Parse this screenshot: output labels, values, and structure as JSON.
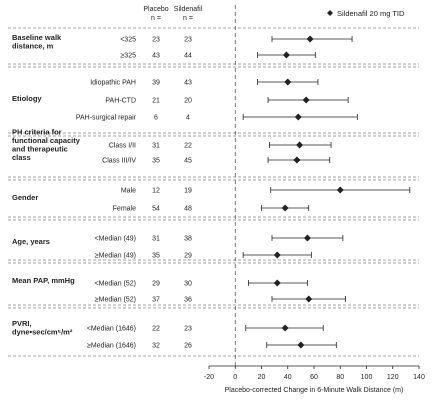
{
  "chart_data": {
    "type": "forest",
    "xlabel": "Placebo-corrected Change in 6-Minute Walk Distance (m)",
    "xticks": [
      -20,
      0,
      20,
      40,
      60,
      80,
      100,
      120,
      140
    ],
    "xlim": [
      -20,
      140
    ],
    "reference_line": 0,
    "grid": false,
    "legend": {
      "label": "Sildenafil 20 mg TID",
      "marker": "diamond",
      "placement": "top-right"
    },
    "column_headers": {
      "placebo": "Placebo",
      "placebo_n": "n =",
      "sildenafil": "Sildenafil",
      "sildenafil_n": "n ="
    },
    "groups": [
      {
        "title": "Baseline walk\ndistance, m",
        "rows": [
          {
            "label": "<325",
            "placebo_n": "23",
            "sildenafil_n": "23",
            "estimate": 57,
            "ci": [
              28,
              89
            ]
          },
          {
            "label": "≥325",
            "placebo_n": "43",
            "sildenafil_n": "44",
            "estimate": 39,
            "ci": [
              17,
              61
            ]
          }
        ]
      },
      {
        "title": "Etiology",
        "rows": [
          {
            "label": "Idiopathic PAH",
            "placebo_n": "39",
            "sildenafil_n": "43",
            "estimate": 40,
            "ci": [
              17,
              63
            ]
          },
          {
            "label": "PAH-CTD",
            "placebo_n": "21",
            "sildenafil_n": "20",
            "estimate": 54,
            "ci": [
              25,
              86
            ]
          },
          {
            "label": "PAH-surgical repair",
            "placebo_n": "6",
            "sildenafil_n": "4",
            "estimate": 48,
            "ci": [
              6,
              93
            ]
          }
        ]
      },
      {
        "title": "PH criteria for\nfunctional capacity\nand therapeutic\nclass",
        "rows": [
          {
            "label": "Class I/II",
            "placebo_n": "31",
            "sildenafil_n": "22",
            "estimate": 49,
            "ci": [
              26,
              73
            ]
          },
          {
            "label": "Class III/IV",
            "placebo_n": "35",
            "sildenafil_n": "45",
            "estimate": 47,
            "ci": [
              25,
              72
            ]
          }
        ]
      },
      {
        "title": "Gender",
        "rows": [
          {
            "label": "Male",
            "placebo_n": "12",
            "sildenafil_n": "19",
            "estimate": 80,
            "ci": [
              27,
              133
            ]
          },
          {
            "label": "Female",
            "placebo_n": "54",
            "sildenafil_n": "48",
            "estimate": 38,
            "ci": [
              20,
              56
            ]
          }
        ]
      },
      {
        "title": "Age, years",
        "rows": [
          {
            "label": "<Median (49)",
            "placebo_n": "31",
            "sildenafil_n": "38",
            "estimate": 55,
            "ci": [
              28,
              82
            ]
          },
          {
            "label": "≥Median (49)",
            "placebo_n": "35",
            "sildenafil_n": "29",
            "estimate": 32,
            "ci": [
              6,
              58
            ]
          }
        ]
      },
      {
        "title": "Mean PAP, mmHg",
        "rows": [
          {
            "label": "<Median (52)",
            "placebo_n": "29",
            "sildenafil_n": "30",
            "estimate": 32,
            "ci": [
              10,
              55
            ]
          },
          {
            "label": "≥Median (52)",
            "placebo_n": "37",
            "sildenafil_n": "36",
            "estimate": 56,
            "ci": [
              28,
              84
            ]
          }
        ]
      },
      {
        "title": "PVRI,\ndyne•sec/cm⁵/m²",
        "rows": [
          {
            "label": "<Median (1646)",
            "placebo_n": "22",
            "sildenafil_n": "23",
            "estimate": 38,
            "ci": [
              8,
              67
            ]
          },
          {
            "label": "≥Median (1646)",
            "placebo_n": "32",
            "sildenafil_n": "26",
            "estimate": 50,
            "ci": [
              24,
              77
            ]
          }
        ]
      }
    ]
  }
}
